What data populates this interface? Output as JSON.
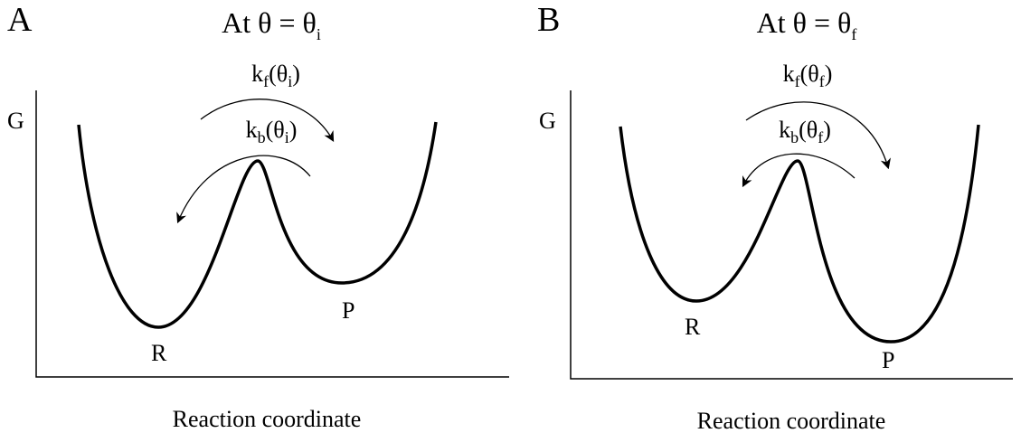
{
  "panels": [
    {
      "letter": "A",
      "title": [
        "At θ = θ",
        "i"
      ],
      "y_label": "G",
      "x_label": "Reaction coordinate",
      "forward": [
        "k",
        "f",
        "(θ",
        "i",
        ")"
      ],
      "backward": [
        "k",
        "b",
        "(θ",
        "i",
        ")"
      ],
      "reactant": "R",
      "product": "P"
    },
    {
      "letter": "B",
      "title": [
        "At θ = θ",
        "f"
      ],
      "y_label": "G",
      "x_label": "Reaction coordinate",
      "forward": [
        "k",
        "f",
        "(θ",
        "f",
        ")"
      ],
      "backward": [
        "k",
        "b",
        "(θ",
        "f",
        ")"
      ],
      "reactant": "R",
      "product": "P"
    }
  ]
}
